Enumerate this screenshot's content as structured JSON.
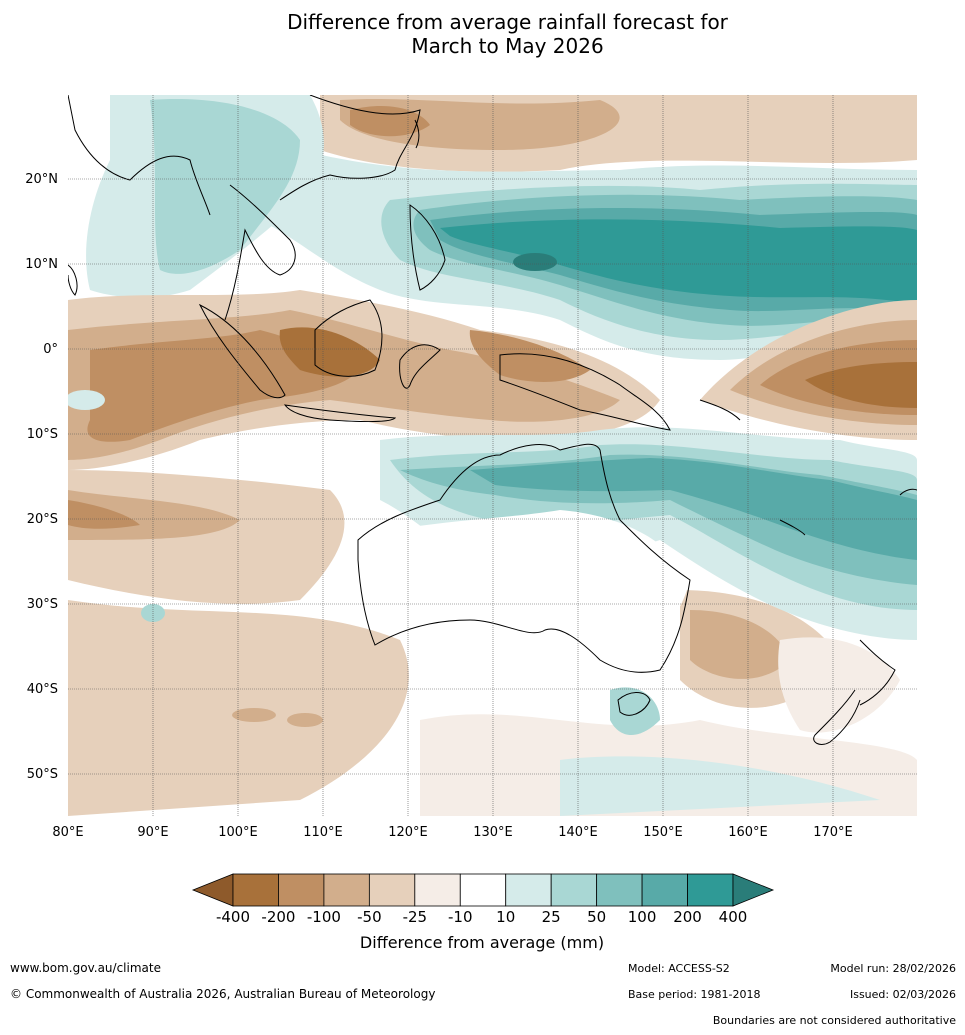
{
  "title": {
    "line1": "Difference from average rainfall forecast for",
    "line2": "March to May 2026"
  },
  "map": {
    "lon_labels": [
      "80°E",
      "90°E",
      "100°E",
      "110°E",
      "120°E",
      "130°E",
      "140°E",
      "150°E",
      "160°E",
      "170°E"
    ],
    "lat_labels": [
      "20°N",
      "10°N",
      "0°",
      "10°S",
      "20°S",
      "30°S",
      "40°S",
      "50°S"
    ]
  },
  "colorbar": {
    "title": "Difference from average (mm)",
    "ticks": [
      "-400",
      "-200",
      "-100",
      "-50",
      "-25",
      "-10",
      "10",
      "25",
      "50",
      "100",
      "200",
      "400"
    ],
    "colors": [
      "#a8713a",
      "#bf8f63",
      "#d2ae8c",
      "#e6d0bb",
      "#f5ede7",
      "#ffffff",
      "#d5ebea",
      "#a9d7d4",
      "#7fc0bd",
      "#58aaa8",
      "#2f9a96"
    ],
    "extend_low": "#8e5a2b",
    "extend_high": "#2a7d79"
  },
  "footer": {
    "url": "www.bom.gov.au/climate",
    "copyright": "© Commonwealth of Australia 2026, Australian Bureau of Meteorology",
    "model": "Model: ACCESS-S2",
    "base_period": "Base period: 1981-2018",
    "model_run": "Model run: 28/02/2026",
    "issued": "Issued: 02/03/2026",
    "disclaimer": "Boundaries are not considered authoritative"
  }
}
